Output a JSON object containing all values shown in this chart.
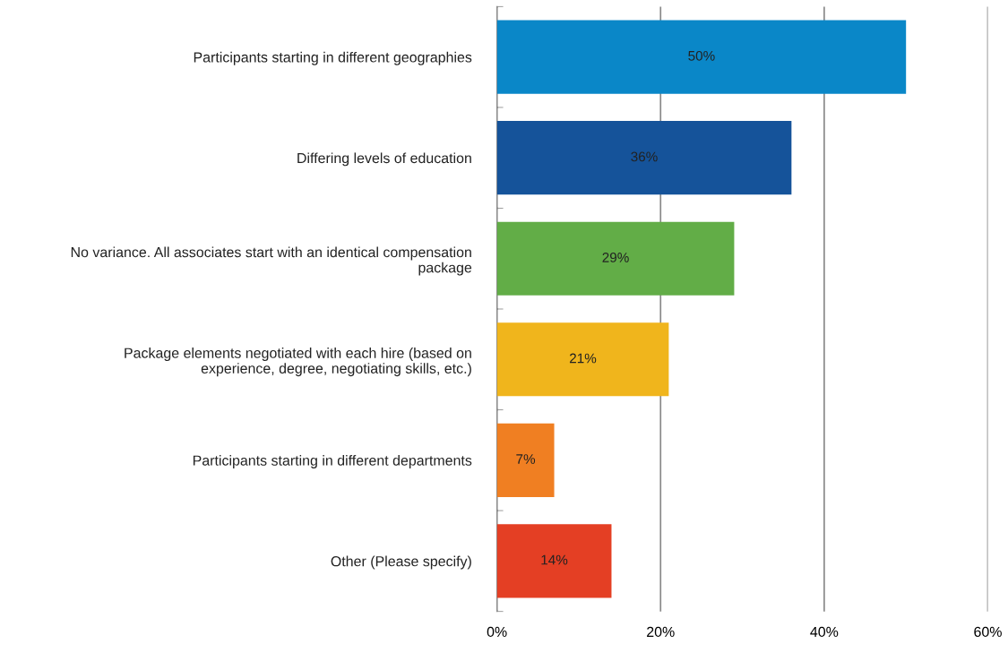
{
  "chart_data": {
    "type": "bar",
    "orientation": "horizontal",
    "categories": [
      "Participants starting in different geographies",
      "Differing levels of education",
      "No variance. All associates start with an identical compensation\npackage",
      "Package elements negotiated with each hire (based on\nexperience, degree, negotiating skills, etc.)",
      "Participants starting in different departments",
      "Other (Please specify)"
    ],
    "values": [
      50,
      36,
      29,
      21,
      7,
      14
    ],
    "value_labels": [
      "50%",
      "36%",
      "29%",
      "21%",
      "7%",
      "14%"
    ],
    "colors": [
      "#0a87c8",
      "#15539a",
      "#62ad47",
      "#f0b51c",
      "#f07f22",
      "#e43f24"
    ],
    "xlim": [
      0,
      60
    ],
    "xticks": [
      {
        "value": 0,
        "label": "0%"
      },
      {
        "value": 20,
        "label": "20%"
      },
      {
        "value": 40,
        "label": "40%"
      },
      {
        "value": 60,
        "label": "60%"
      }
    ],
    "grid": "x",
    "legend": false
  }
}
